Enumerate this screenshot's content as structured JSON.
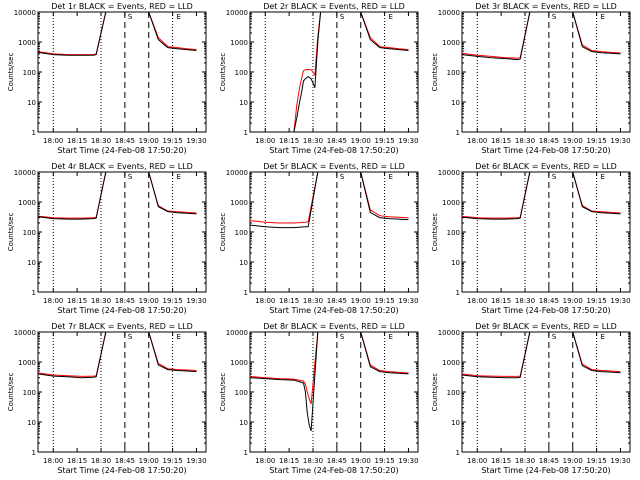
{
  "figure": {
    "start_time_label": "Start Time (24-Feb-08 17:50:20)",
    "ylabel": "Counts/sec",
    "legend_note": "BLACK = Events, RED = LLD",
    "yticks": [
      "1",
      "10",
      "100",
      "1000",
      "10000"
    ],
    "xticks": [
      "18:00",
      "18:15",
      "18:30",
      "18:45",
      "19:00",
      "19:15",
      "19:30"
    ],
    "marker_labels": [
      "S",
      "E"
    ],
    "colors": {
      "events": "#000000",
      "lld": "#ff0000"
    }
  },
  "chart_data": [
    {
      "type": "line",
      "title": "Det 1r BLACK = Events, RED = LLD",
      "yscale": "log",
      "ylim": [
        1,
        10000
      ],
      "x_minutes_labels": [
        "18:00",
        "18:15",
        "18:30",
        "18:45",
        "19:00",
        "19:15",
        "19:30"
      ],
      "series": [
        {
          "name": "BLACK = Events",
          "x": [
            17.83,
            18.0,
            18.15,
            18.3,
            18.42,
            18.45,
            18.55,
            18.65,
            18.75,
            18.9,
            19.0,
            19.1,
            19.2,
            19.3,
            19.4,
            19.5
          ],
          "values": [
            450,
            380,
            360,
            360,
            360,
            380,
            10000,
            10000,
            10000,
            10000,
            10000,
            1200,
            650,
            600,
            560,
            520
          ]
        },
        {
          "name": "RED = LLD",
          "x": [
            17.83,
            18.0,
            18.15,
            18.3,
            18.42,
            18.45,
            18.55,
            18.65,
            18.75,
            18.9,
            19.0,
            19.1,
            19.2,
            19.3,
            19.4,
            19.5
          ],
          "values": [
            480,
            400,
            380,
            380,
            380,
            400,
            10000,
            10000,
            10000,
            10000,
            10000,
            1400,
            700,
            650,
            600,
            560
          ]
        }
      ]
    },
    {
      "type": "line",
      "title": "Det 2r BLACK = Events, RED = LLD",
      "yscale": "log",
      "ylim": [
        1,
        10000
      ],
      "series": [
        {
          "name": "BLACK = Events",
          "x": [
            18.3,
            18.33,
            18.36,
            18.38,
            18.4,
            18.42,
            18.45,
            18.48,
            18.52,
            18.55,
            18.58,
            18.65,
            18.75,
            18.9,
            19.0,
            19.1,
            19.2,
            19.3,
            19.4,
            19.5
          ],
          "values": [
            1,
            3,
            10,
            20,
            50,
            60,
            70,
            60,
            30,
            1000,
            10000,
            10000,
            10000,
            10000,
            10000,
            1200,
            650,
            600,
            560,
            520
          ]
        },
        {
          "name": "RED = LLD",
          "x": [
            18.3,
            18.33,
            18.36,
            18.38,
            18.4,
            18.42,
            18.45,
            18.48,
            18.52,
            18.55,
            18.58,
            18.65,
            18.75,
            18.9,
            19.0,
            19.1,
            19.2,
            19.3,
            19.4,
            19.5
          ],
          "values": [
            1,
            8,
            30,
            60,
            110,
            120,
            120,
            120,
            80,
            1500,
            10000,
            10000,
            10000,
            10000,
            10000,
            1400,
            700,
            650,
            600,
            560
          ]
        }
      ]
    },
    {
      "type": "line",
      "title": "Det 3r BLACK = Events, RED = LLD",
      "yscale": "log",
      "ylim": [
        1,
        10000
      ],
      "series": [
        {
          "name": "BLACK = Events",
          "x": [
            17.83,
            18.0,
            18.15,
            18.3,
            18.42,
            18.45,
            18.55,
            18.65,
            18.75,
            18.9,
            19.0,
            19.1,
            19.2,
            19.3,
            19.4,
            19.5
          ],
          "values": [
            380,
            330,
            300,
            280,
            260,
            270,
            10000,
            10000,
            10000,
            10000,
            10000,
            700,
            480,
            440,
            420,
            400
          ]
        },
        {
          "name": "RED = LLD",
          "x": [
            17.83,
            18.0,
            18.15,
            18.3,
            18.42,
            18.45,
            18.55,
            18.65,
            18.75,
            18.9,
            19.0,
            19.1,
            19.2,
            19.3,
            19.4,
            19.5
          ],
          "values": [
            420,
            360,
            330,
            300,
            290,
            300,
            10000,
            10000,
            10000,
            10000,
            10000,
            800,
            520,
            480,
            450,
            430
          ]
        }
      ]
    },
    {
      "type": "line",
      "title": "Det 4r BLACK = Events, RED = LLD",
      "yscale": "log",
      "ylim": [
        1,
        10000
      ],
      "series": [
        {
          "name": "BLACK = Events",
          "x": [
            17.83,
            18.0,
            18.15,
            18.3,
            18.42,
            18.45,
            18.55,
            18.65,
            18.75,
            18.9,
            19.0,
            19.1,
            19.2,
            19.3,
            19.4,
            19.5
          ],
          "values": [
            320,
            280,
            270,
            270,
            280,
            290,
            10000,
            10000,
            10000,
            10000,
            10000,
            700,
            480,
            440,
            420,
            400
          ]
        },
        {
          "name": "RED = LLD",
          "x": [
            17.83,
            18.0,
            18.15,
            18.3,
            18.42,
            18.45,
            18.55,
            18.65,
            18.75,
            18.9,
            19.0,
            19.1,
            19.2,
            19.3,
            19.4,
            19.5
          ],
          "values": [
            340,
            300,
            290,
            290,
            300,
            310,
            10000,
            10000,
            10000,
            10000,
            10000,
            750,
            500,
            470,
            450,
            430
          ]
        }
      ]
    },
    {
      "type": "line",
      "title": "Det 5r BLACK = Events, RED = LLD",
      "yscale": "log",
      "ylim": [
        1,
        10000
      ],
      "series": [
        {
          "name": "BLACK = Events",
          "x": [
            17.83,
            18.0,
            18.15,
            18.3,
            18.42,
            18.45,
            18.55,
            18.65,
            18.75,
            18.9,
            19.0,
            19.1,
            19.2,
            19.3,
            19.4,
            19.5
          ],
          "values": [
            170,
            150,
            140,
            140,
            150,
            150,
            10000,
            10000,
            10000,
            10000,
            10000,
            450,
            300,
            280,
            270,
            260
          ]
        },
        {
          "name": "RED = LLD",
          "x": [
            17.83,
            18.0,
            18.15,
            18.3,
            18.42,
            18.45,
            18.55,
            18.65,
            18.75,
            18.9,
            19.0,
            19.1,
            19.2,
            19.3,
            19.4,
            19.5
          ],
          "values": [
            240,
            210,
            200,
            200,
            210,
            220,
            10000,
            10000,
            10000,
            10000,
            10000,
            550,
            350,
            320,
            310,
            300
          ]
        }
      ]
    },
    {
      "type": "line",
      "title": "Det 6r BLACK = Events, RED = LLD",
      "yscale": "log",
      "ylim": [
        1,
        10000
      ],
      "series": [
        {
          "name": "BLACK = Events",
          "x": [
            17.83,
            18.0,
            18.15,
            18.3,
            18.42,
            18.45,
            18.55,
            18.65,
            18.75,
            18.9,
            19.0,
            19.1,
            19.2,
            19.3,
            19.4,
            19.5
          ],
          "values": [
            310,
            280,
            270,
            270,
            280,
            290,
            10000,
            10000,
            10000,
            10000,
            10000,
            700,
            480,
            440,
            420,
            400
          ]
        },
        {
          "name": "RED = LLD",
          "x": [
            17.83,
            18.0,
            18.15,
            18.3,
            18.42,
            18.45,
            18.55,
            18.65,
            18.75,
            18.9,
            19.0,
            19.1,
            19.2,
            19.3,
            19.4,
            19.5
          ],
          "values": [
            330,
            300,
            290,
            290,
            300,
            310,
            10000,
            10000,
            10000,
            10000,
            10000,
            760,
            500,
            470,
            450,
            430
          ]
        }
      ]
    },
    {
      "type": "line",
      "title": "Det 7r BLACK = Events, RED = LLD",
      "yscale": "log",
      "ylim": [
        1,
        10000
      ],
      "series": [
        {
          "name": "BLACK = Events",
          "x": [
            17.83,
            18.0,
            18.15,
            18.3,
            18.42,
            18.45,
            18.55,
            18.65,
            18.75,
            18.9,
            19.0,
            19.1,
            19.2,
            19.3,
            19.4,
            19.5
          ],
          "values": [
            400,
            340,
            320,
            300,
            310,
            320,
            10000,
            10000,
            10000,
            10000,
            10000,
            800,
            560,
            520,
            500,
            480
          ]
        },
        {
          "name": "RED = LLD",
          "x": [
            17.83,
            18.0,
            18.15,
            18.3,
            18.42,
            18.45,
            18.55,
            18.65,
            18.75,
            18.9,
            19.0,
            19.1,
            19.2,
            19.3,
            19.4,
            19.5
          ],
          "values": [
            430,
            370,
            350,
            330,
            340,
            350,
            10000,
            10000,
            10000,
            10000,
            10000,
            900,
            600,
            560,
            540,
            520
          ]
        }
      ]
    },
    {
      "type": "line",
      "title": "Det 8r BLACK = Events, RED = LLD",
      "yscale": "log",
      "ylim": [
        1,
        10000
      ],
      "series": [
        {
          "name": "BLACK = Events",
          "x": [
            17.83,
            18.0,
            18.15,
            18.3,
            18.4,
            18.42,
            18.44,
            18.46,
            18.48,
            18.55,
            18.65,
            18.75,
            18.9,
            19.0,
            19.1,
            19.2,
            19.3,
            19.4,
            19.5
          ],
          "values": [
            300,
            280,
            260,
            250,
            200,
            100,
            20,
            8,
            5,
            10000,
            10000,
            10000,
            10000,
            10000,
            700,
            480,
            440,
            420,
            400
          ]
        },
        {
          "name": "RED = LLD",
          "x": [
            17.83,
            18.0,
            18.15,
            18.3,
            18.4,
            18.42,
            18.44,
            18.46,
            18.48,
            18.55,
            18.65,
            18.75,
            18.9,
            19.0,
            19.1,
            19.2,
            19.3,
            19.4,
            19.5
          ],
          "values": [
            330,
            300,
            280,
            270,
            230,
            180,
            100,
            60,
            40,
            10000,
            10000,
            10000,
            10000,
            10000,
            800,
            520,
            480,
            450,
            430
          ]
        }
      ]
    },
    {
      "type": "line",
      "title": "Det 9r BLACK = Events, RED = LLD",
      "yscale": "log",
      "ylim": [
        1,
        10000
      ],
      "series": [
        {
          "name": "BLACK = Events",
          "x": [
            17.83,
            18.0,
            18.15,
            18.3,
            18.42,
            18.45,
            18.55,
            18.65,
            18.75,
            18.9,
            19.0,
            19.1,
            19.2,
            19.3,
            19.4,
            19.5
          ],
          "values": [
            370,
            320,
            310,
            300,
            300,
            310,
            10000,
            10000,
            10000,
            10000,
            10000,
            750,
            520,
            480,
            460,
            440
          ]
        },
        {
          "name": "RED = LLD",
          "x": [
            17.83,
            18.0,
            18.15,
            18.3,
            18.42,
            18.45,
            18.55,
            18.65,
            18.75,
            18.9,
            19.0,
            19.1,
            19.2,
            19.3,
            19.4,
            19.5
          ],
          "values": [
            400,
            350,
            340,
            330,
            330,
            340,
            10000,
            10000,
            10000,
            10000,
            10000,
            850,
            560,
            520,
            500,
            480
          ]
        }
      ]
    }
  ]
}
